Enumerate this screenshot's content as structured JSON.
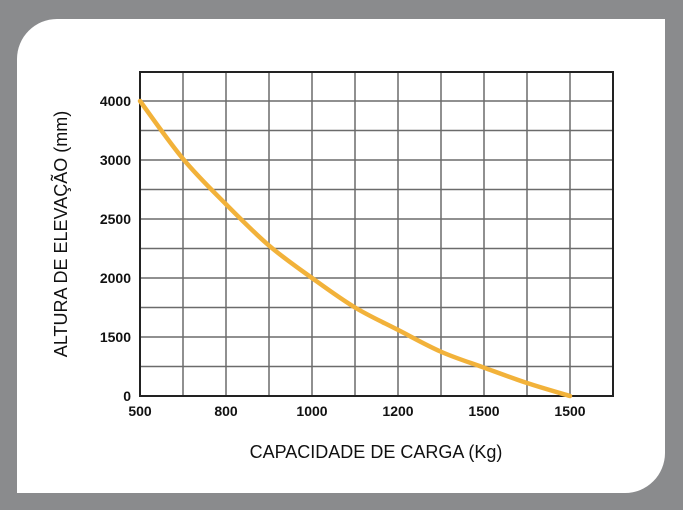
{
  "chart_data": {
    "type": "line",
    "xlabel": "CAPACIDADE DE CARGA (Kg)",
    "ylabel": "ALTURA DE ELEVAÇÃO (mm)",
    "x_tick_labels": [
      "500",
      "800",
      "1000",
      "1200",
      "1500",
      "1500"
    ],
    "y_tick_labels": [
      "0",
      "1500",
      "2000",
      "2500",
      "3000",
      "4000"
    ],
    "grid": true,
    "series": [
      {
        "color": "#f2b23a",
        "points_x_tick_index": [
          0,
          0.5,
          1,
          1.5,
          2,
          2.5,
          3,
          3.5,
          4,
          4.5,
          5
        ],
        "points_y_tick_index": [
          5,
          4.02,
          3.25,
          2.55,
          2.0,
          1.5,
          1.12,
          0.75,
          0.48,
          0.22,
          0
        ]
      }
    ]
  }
}
